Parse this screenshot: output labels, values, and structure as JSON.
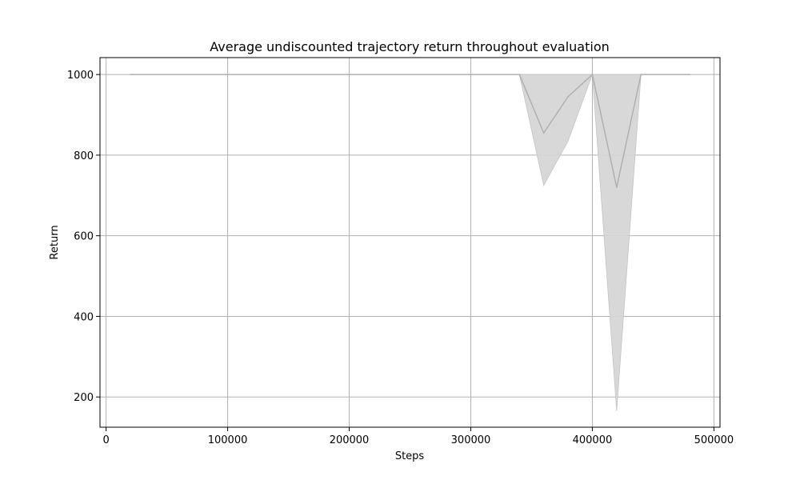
{
  "chart_data": {
    "type": "line",
    "title": "Average undiscounted trajectory return throughout evaluation",
    "xlabel": "Steps",
    "ylabel": "Return",
    "xlim": [
      -5000,
      505000
    ],
    "ylim": [
      125,
      1042
    ],
    "xticks": [
      0,
      100000,
      200000,
      300000,
      400000,
      500000
    ],
    "yticks": [
      200,
      400,
      600,
      800,
      1000
    ],
    "grid": true,
    "colors": {
      "line": "#b0b0b0",
      "band": "#d6d6d6",
      "grid": "#b0b0b0",
      "axis": "#000000"
    },
    "series": [
      {
        "x": [
          20000,
          40000,
          60000,
          80000,
          100000,
          120000,
          140000,
          160000,
          180000,
          200000,
          220000,
          240000,
          260000,
          280000,
          300000,
          320000,
          340000,
          360000,
          380000,
          400000,
          420000,
          440000,
          460000,
          480000
        ],
        "mean": [
          1000,
          1000,
          1000,
          1000,
          1000,
          1000,
          1000,
          1000,
          1000,
          1000,
          1000,
          1000,
          1000,
          1000,
          1000,
          1000,
          1000,
          855,
          945,
          1000,
          720,
          1000,
          1000,
          1000
        ],
        "lower": [
          1000,
          1000,
          1000,
          1000,
          1000,
          1000,
          1000,
          1000,
          1000,
          1000,
          1000,
          1000,
          1000,
          1000,
          1000,
          1000,
          1000,
          725,
          835,
          1000,
          165,
          1000,
          1000,
          1000
        ],
        "upper": [
          1000,
          1000,
          1000,
          1000,
          1000,
          1000,
          1000,
          1000,
          1000,
          1000,
          1000,
          1000,
          1000,
          1000,
          1000,
          1000,
          1000,
          1000,
          1000,
          1000,
          1000,
          1000,
          1000,
          1000
        ]
      }
    ]
  }
}
